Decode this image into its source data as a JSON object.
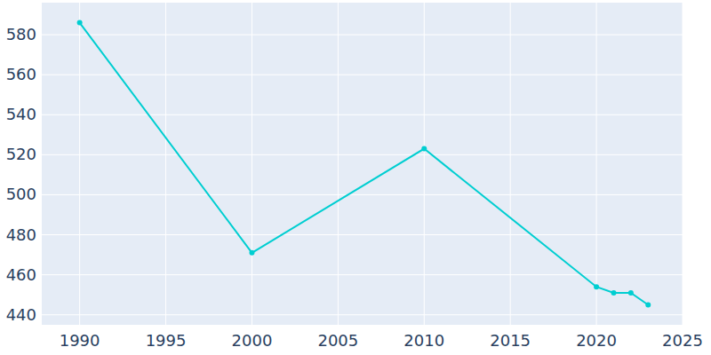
{
  "chart_data": {
    "type": "line",
    "x": [
      1990,
      2000,
      2010,
      2020,
      2021,
      2022,
      2023
    ],
    "values": [
      586,
      471,
      523,
      454,
      451,
      451,
      445
    ],
    "color": "#00ced1",
    "marker": "circle",
    "xlim": [
      1987.8,
      2025
    ],
    "xticks": [
      1990,
      1995,
      2000,
      2005,
      2010,
      2015,
      2020,
      2025
    ],
    "ylim": [
      435,
      596
    ],
    "yticks": [
      440,
      460,
      480,
      500,
      520,
      540,
      560,
      580
    ],
    "grid": true
  }
}
